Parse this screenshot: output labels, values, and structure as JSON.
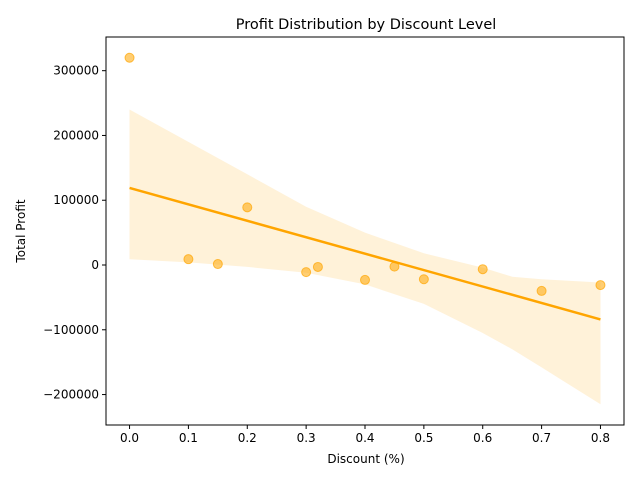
{
  "chart_data": {
    "type": "scatter",
    "title": "Profit Distribution by Discount Level",
    "xlabel": "Discount (%)",
    "ylabel": "Total Profit",
    "xlim": [
      -0.04,
      0.84
    ],
    "ylim": [
      -247000,
      352000
    ],
    "x_ticks": [
      0.0,
      0.1,
      0.2,
      0.3,
      0.4,
      0.5,
      0.6,
      0.7,
      0.8
    ],
    "x_tick_labels": [
      "0.0",
      "0.1",
      "0.2",
      "0.3",
      "0.4",
      "0.5",
      "0.6",
      "0.7",
      "0.8"
    ],
    "y_ticks": [
      -200000,
      -100000,
      0,
      100000,
      200000,
      300000
    ],
    "y_tick_labels": [
      "−200000",
      "−100000",
      "0",
      "100000",
      "200000",
      "300000"
    ],
    "grid": false,
    "point_color": "#FFA500",
    "points": [
      {
        "x": 0.0,
        "y": 320000
      },
      {
        "x": 0.1,
        "y": 9000
      },
      {
        "x": 0.15,
        "y": 1500
      },
      {
        "x": 0.2,
        "y": 89000
      },
      {
        "x": 0.3,
        "y": -11000
      },
      {
        "x": 0.32,
        "y": -3000
      },
      {
        "x": 0.4,
        "y": -23000
      },
      {
        "x": 0.45,
        "y": -2500
      },
      {
        "x": 0.5,
        "y": -22000
      },
      {
        "x": 0.6,
        "y": -6500
      },
      {
        "x": 0.7,
        "y": -40000
      },
      {
        "x": 0.8,
        "y": -31000
      }
    ],
    "regression": {
      "color": "#FFA500",
      "line": [
        [
          0.0,
          119000
        ],
        [
          0.8,
          -84000
        ]
      ],
      "ci_band": [
        {
          "x": 0.0,
          "lo": 9000,
          "hi": 240000
        },
        {
          "x": 0.1,
          "lo": 4000,
          "hi": 190000
        },
        {
          "x": 0.2,
          "lo": -3000,
          "hi": 140000
        },
        {
          "x": 0.3,
          "lo": -12000,
          "hi": 90000
        },
        {
          "x": 0.4,
          "lo": -30000,
          "hi": 50000
        },
        {
          "x": 0.5,
          "lo": -60000,
          "hi": 18000
        },
        {
          "x": 0.6,
          "lo": -105000,
          "hi": -4000
        },
        {
          "x": 0.65,
          "lo": -130000,
          "hi": -18000
        },
        {
          "x": 0.7,
          "lo": -158000,
          "hi": -22000
        },
        {
          "x": 0.8,
          "lo": -215000,
          "hi": -27000
        }
      ]
    }
  }
}
